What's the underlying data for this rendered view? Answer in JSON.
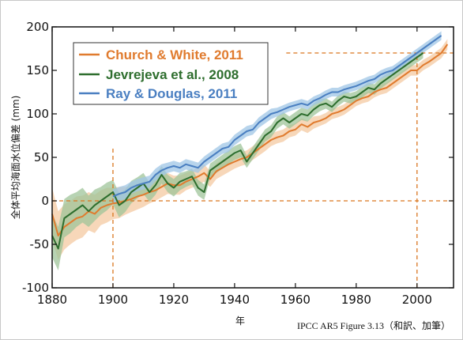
{
  "chart_data": {
    "type": "line",
    "xlabel": "年",
    "ylabel": "全体平均海面水位偏差 (mm)",
    "xlim": [
      1880,
      2012
    ],
    "ylim": [
      -100,
      200
    ],
    "xticks": [
      1880,
      1900,
      1920,
      1940,
      1960,
      1980,
      2000
    ],
    "yticks": [
      -100,
      -50,
      0,
      50,
      100,
      150,
      200
    ],
    "grid": false,
    "legend_position": "top-left",
    "reference_lines": [
      {
        "axis": "x",
        "value": 1900,
        "from": -100,
        "to": 60
      },
      {
        "axis": "x",
        "value": 2000,
        "from": -100,
        "to": 170
      },
      {
        "axis": "y",
        "value": 0,
        "from": 1880,
        "to": 2012
      },
      {
        "axis": "y",
        "value": 170,
        "from": 1957,
        "to": 2012
      }
    ],
    "series": [
      {
        "name": "Church & White, 2011",
        "color": "#e07b2e",
        "band_color": "#f4c9a2",
        "x": [
          1880,
          1882,
          1884,
          1886,
          1888,
          1890,
          1892,
          1894,
          1896,
          1898,
          1900,
          1902,
          1904,
          1906,
          1908,
          1910,
          1912,
          1914,
          1916,
          1918,
          1920,
          1922,
          1924,
          1926,
          1928,
          1930,
          1932,
          1934,
          1936,
          1938,
          1940,
          1942,
          1944,
          1946,
          1948,
          1950,
          1952,
          1954,
          1956,
          1958,
          1960,
          1962,
          1964,
          1966,
          1968,
          1970,
          1972,
          1974,
          1976,
          1978,
          1980,
          1982,
          1984,
          1986,
          1988,
          1990,
          1992,
          1994,
          1996,
          1998,
          2000,
          2002,
          2004,
          2006,
          2008,
          2010
        ],
        "y": [
          -15,
          -40,
          -30,
          -25,
          -20,
          -18,
          -12,
          -15,
          -8,
          -5,
          -3,
          -2,
          0,
          2,
          5,
          7,
          10,
          12,
          16,
          20,
          18,
          18,
          22,
          25,
          28,
          32,
          25,
          34,
          38,
          42,
          45,
          48,
          50,
          55,
          60,
          65,
          70,
          73,
          75,
          80,
          82,
          88,
          85,
          90,
          92,
          95,
          100,
          102,
          105,
          110,
          115,
          118,
          120,
          125,
          128,
          130,
          135,
          140,
          145,
          150,
          150,
          156,
          160,
          165,
          170,
          180
        ],
        "err": [
          30,
          28,
          26,
          25,
          25,
          24,
          22,
          22,
          20,
          20,
          18,
          18,
          16,
          15,
          15,
          14,
          13,
          12,
          12,
          12,
          11,
          11,
          10,
          10,
          10,
          10,
          9,
          9,
          9,
          9,
          8,
          8,
          8,
          8,
          8,
          8,
          7,
          7,
          7,
          7,
          7,
          7,
          7,
          7,
          6,
          6,
          6,
          6,
          6,
          6,
          6,
          6,
          6,
          6,
          6,
          6,
          6,
          6,
          6,
          6,
          6,
          6,
          6,
          6,
          6,
          6
        ]
      },
      {
        "name": "Jevrejeva et al., 2008",
        "color": "#2e6e2e",
        "band_color": "#9fc49a",
        "x": [
          1880,
          1882,
          1884,
          1886,
          1888,
          1890,
          1892,
          1894,
          1896,
          1898,
          1900,
          1902,
          1904,
          1906,
          1908,
          1910,
          1912,
          1914,
          1916,
          1918,
          1920,
          1922,
          1924,
          1926,
          1928,
          1930,
          1932,
          1934,
          1936,
          1938,
          1940,
          1942,
          1944,
          1946,
          1948,
          1950,
          1952,
          1954,
          1956,
          1958,
          1960,
          1962,
          1964,
          1966,
          1968,
          1970,
          1972,
          1974,
          1976,
          1978,
          1980,
          1982,
          1984,
          1986,
          1988,
          1990,
          1992,
          1994,
          1996,
          1998,
          2000,
          2002
        ],
        "y": [
          -40,
          -55,
          -20,
          -15,
          -10,
          -5,
          -12,
          -5,
          0,
          5,
          10,
          -5,
          0,
          10,
          15,
          20,
          10,
          18,
          30,
          20,
          15,
          22,
          25,
          28,
          15,
          10,
          35,
          40,
          45,
          50,
          55,
          58,
          45,
          55,
          65,
          75,
          80,
          90,
          95,
          90,
          95,
          100,
          98,
          105,
          110,
          112,
          108,
          115,
          120,
          118,
          120,
          125,
          130,
          128,
          135,
          140,
          145,
          150,
          155,
          160,
          165,
          170
        ],
        "err": [
          25,
          25,
          22,
          22,
          20,
          20,
          18,
          18,
          16,
          16,
          14,
          14,
          13,
          13,
          12,
          12,
          11,
          11,
          10,
          10,
          10,
          10,
          9,
          9,
          9,
          9,
          8,
          8,
          8,
          8,
          8,
          8,
          7,
          7,
          7,
          7,
          7,
          7,
          7,
          7,
          7,
          7,
          7,
          7,
          7,
          6,
          6,
          6,
          6,
          6,
          6,
          6,
          6,
          6,
          6,
          6,
          6,
          6,
          6,
          6,
          6,
          6
        ]
      },
      {
        "name": "Ray & Douglas, 2011",
        "color": "#4a7fc1",
        "band_color": "#9fc5e5",
        "x": [
          1900,
          1902,
          1904,
          1906,
          1908,
          1910,
          1912,
          1914,
          1916,
          1918,
          1920,
          1922,
          1924,
          1926,
          1928,
          1930,
          1932,
          1934,
          1936,
          1938,
          1940,
          1942,
          1944,
          1946,
          1948,
          1950,
          1952,
          1954,
          1956,
          1958,
          1960,
          1962,
          1964,
          1966,
          1968,
          1970,
          1972,
          1974,
          1976,
          1978,
          1980,
          1982,
          1984,
          1986,
          1988,
          1990,
          1992,
          1994,
          1996,
          1998,
          2000,
          2002,
          2004,
          2006,
          2008
        ],
        "y": [
          5,
          8,
          10,
          15,
          18,
          20,
          22,
          30,
          35,
          38,
          40,
          38,
          42,
          40,
          38,
          45,
          50,
          55,
          60,
          62,
          70,
          75,
          80,
          82,
          90,
          95,
          100,
          102,
          105,
          108,
          110,
          112,
          110,
          115,
          118,
          122,
          125,
          125,
          128,
          130,
          132,
          135,
          138,
          140,
          145,
          148,
          150,
          155,
          160,
          165,
          170,
          175,
          180,
          185,
          190
        ],
        "err": [
          8,
          8,
          8,
          7,
          7,
          7,
          7,
          7,
          7,
          6,
          6,
          6,
          6,
          6,
          6,
          6,
          6,
          6,
          6,
          6,
          6,
          6,
          6,
          6,
          6,
          6,
          6,
          5,
          5,
          5,
          5,
          5,
          5,
          5,
          5,
          5,
          5,
          5,
          5,
          5,
          5,
          5,
          5,
          5,
          5,
          5,
          5,
          5,
          5,
          5,
          5,
          5,
          5,
          5,
          5
        ]
      }
    ]
  },
  "caption": "IPCC AR5 Figure 3.13（和訳、加筆）"
}
